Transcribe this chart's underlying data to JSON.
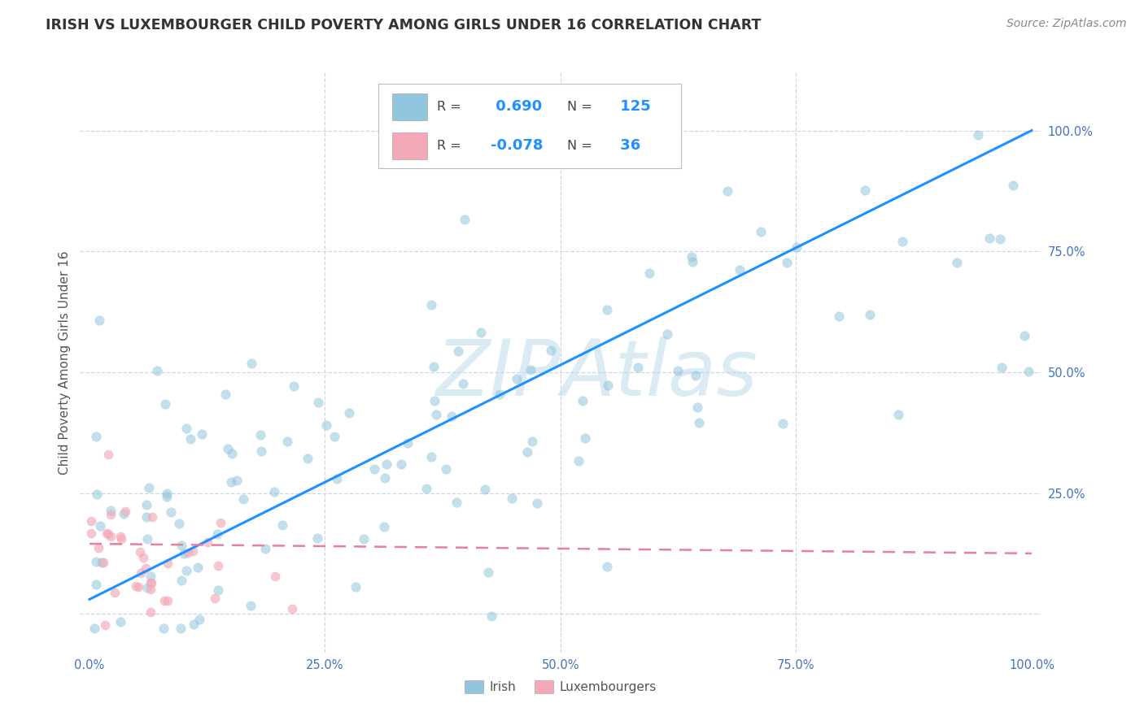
{
  "title": "IRISH VS LUXEMBOURGER CHILD POVERTY AMONG GIRLS UNDER 16 CORRELATION CHART",
  "source": "Source: ZipAtlas.com",
  "ylabel": "Child Poverty Among Girls Under 16",
  "irish_R": 0.69,
  "irish_N": 125,
  "lux_R": -0.078,
  "lux_N": 36,
  "xlim": [
    -0.01,
    1.01
  ],
  "ylim": [
    -0.08,
    1.12
  ],
  "x_ticks": [
    0.0,
    0.25,
    0.5,
    0.75,
    1.0
  ],
  "x_tick_labels": [
    "0.0%",
    "25.0%",
    "50.0%",
    "75.0%",
    "100.0%"
  ],
  "y_ticks": [
    0.0,
    0.25,
    0.5,
    0.75,
    1.0
  ],
  "y_tick_labels": [
    "",
    "25.0%",
    "50.0%",
    "75.0%",
    "100.0%"
  ],
  "irish_color": "#92c5de",
  "lux_color": "#f4a9b8",
  "irish_line_color": "#1e90ff",
  "lux_line_color": "#e87fa0",
  "watermark_color": "#b8d8ea",
  "background_color": "#ffffff",
  "grid_color": "#c8d8e8",
  "title_color": "#333333",
  "source_color": "#888888",
  "axis_label_color": "#555555",
  "tick_color": "#4472c4",
  "legend_R_color": "#333333",
  "legend_val_color": "#1e90ff"
}
